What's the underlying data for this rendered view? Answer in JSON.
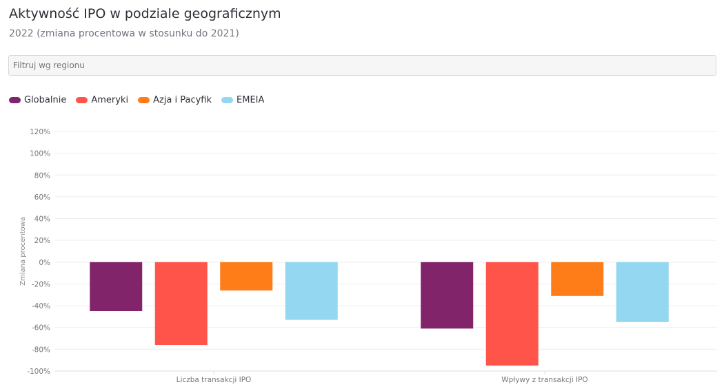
{
  "header": {
    "title": "Aktywność IPO w podziale geograficznym",
    "subtitle": "2022 (zmiana procentowa w stosunku do 2021)"
  },
  "filter": {
    "placeholder": "Filtruj wg regionu"
  },
  "chart_data": {
    "type": "bar",
    "title": "Aktywność IPO w podziale geograficznym",
    "ylabel": "Zmiana procentowa",
    "xlabel": "",
    "categories": [
      "Liczba transakcji IPO",
      "Wpływy z transakcji IPO"
    ],
    "ylim": [
      -100,
      120
    ],
    "yticks": [
      120,
      100,
      80,
      60,
      40,
      20,
      0,
      -20,
      -40,
      -60,
      -80,
      -100
    ],
    "ytick_labels": [
      "120%",
      "100%",
      "80%",
      "60%",
      "40%",
      "20%",
      "0%",
      "-20%",
      "-40%",
      "-60%",
      "-80%",
      "-100%"
    ],
    "grid": true,
    "legend_position": "top-left",
    "series": [
      {
        "name": "Globalnie",
        "color": "#82246a",
        "values": [
          -45,
          -61
        ]
      },
      {
        "name": "Ameryki",
        "color": "#ff5449",
        "values": [
          -76,
          -95
        ]
      },
      {
        "name": "Azja i Pacyfik",
        "color": "#ff7d19",
        "values": [
          -26,
          -31
        ]
      },
      {
        "name": "EMEIA",
        "color": "#93d7f0",
        "values": [
          -53,
          -55
        ]
      }
    ]
  }
}
